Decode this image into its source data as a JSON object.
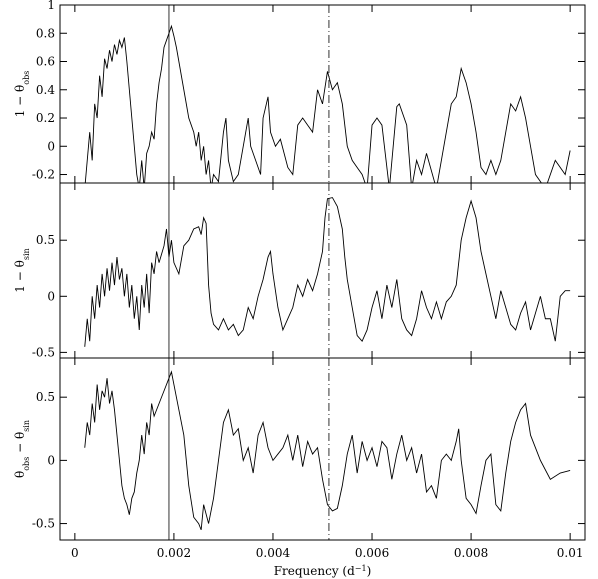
{
  "chart_data": [
    {
      "type": "line",
      "ylabel": [
        {
          "text": "1 − θ"
        },
        {
          "text": "obs",
          "sub": true
        }
      ],
      "xlim": [
        -0.0003,
        0.0103
      ],
      "ylim": [
        -0.26,
        1
      ],
      "xticks": [
        0,
        0.002,
        0.004,
        0.006,
        0.008,
        0.01
      ],
      "yticks": [
        -0.2,
        0,
        0.2,
        0.4,
        0.6,
        0.8,
        1
      ],
      "vlines": [
        0.0019,
        0.00513
      ],
      "vline_dash": [
        "solid",
        "dashdot"
      ],
      "color": "#000000",
      "x": [
        0.0002,
        0.0003,
        0.00035,
        0.0004,
        0.00045,
        0.0005,
        0.00055,
        0.0006,
        0.00065,
        0.0007,
        0.00075,
        0.0008,
        0.00085,
        0.0009,
        0.00095,
        0.001,
        0.00105,
        0.0011,
        0.00115,
        0.0012,
        0.00125,
        0.0013,
        0.00135,
        0.0014,
        0.00145,
        0.0015,
        0.00155,
        0.0016,
        0.00165,
        0.0017,
        0.00175,
        0.0018,
        0.00185,
        0.0019,
        0.00195,
        0.002,
        0.00205,
        0.0021,
        0.00215,
        0.0022,
        0.00225,
        0.0023,
        0.00235,
        0.0024,
        0.00245,
        0.0025,
        0.00255,
        0.0026,
        0.00265,
        0.0027,
        0.00275,
        0.0028,
        0.0029,
        0.003,
        0.00305,
        0.0031,
        0.0032,
        0.0033,
        0.0034,
        0.0035,
        0.00355,
        0.00365,
        0.00375,
        0.0038,
        0.0039,
        0.00395,
        0.00405,
        0.00415,
        0.0043,
        0.0044,
        0.0045,
        0.0046,
        0.0047,
        0.0048,
        0.0049,
        0.005,
        0.0051,
        0.0052,
        0.0053,
        0.0054,
        0.0055,
        0.0056,
        0.0057,
        0.0058,
        0.0059,
        0.006,
        0.0061,
        0.0062,
        0.00635,
        0.0065,
        0.00655,
        0.0067,
        0.0068,
        0.0069,
        0.007,
        0.0071,
        0.0073,
        0.0076,
        0.0077,
        0.0078,
        0.0079,
        0.008,
        0.0081,
        0.0082,
        0.0083,
        0.0084,
        0.0085,
        0.0086,
        0.0088,
        0.0089,
        0.009,
        0.0091,
        0.0092,
        0.0093,
        0.0095,
        0.0097,
        0.0099,
        0.01
      ],
      "values": [
        -0.3,
        0.1,
        -0.1,
        0.3,
        0.2,
        0.5,
        0.35,
        0.62,
        0.55,
        0.68,
        0.6,
        0.72,
        0.65,
        0.75,
        0.7,
        0.77,
        0.6,
        0.4,
        0.2,
        0,
        -0.2,
        -0.3,
        -0.1,
        -0.3,
        -0.05,
        0,
        0.1,
        0.05,
        0.3,
        0.45,
        0.55,
        0.7,
        0.75,
        0.8,
        0.85,
        0.78,
        0.7,
        0.6,
        0.5,
        0.4,
        0.3,
        0.2,
        0.15,
        0.1,
        0,
        0.1,
        -0.1,
        0,
        -0.2,
        -0.1,
        -0.3,
        -0.2,
        -0.25,
        0.1,
        0.2,
        -0.1,
        -0.25,
        -0.2,
        0,
        0.2,
        0,
        -0.1,
        -0.2,
        0.2,
        0.35,
        0.1,
        0,
        0.05,
        -0.15,
        -0.2,
        0.15,
        0.2,
        0.15,
        0.1,
        0.4,
        0.3,
        0.53,
        0.4,
        0.45,
        0.3,
        0,
        -0.1,
        -0.15,
        -0.2,
        -0.3,
        0.15,
        0.2,
        0.15,
        -0.3,
        0.28,
        0.3,
        0.15,
        -0.3,
        -0.1,
        -0.2,
        -0.05,
        -0.3,
        0.3,
        0.35,
        0.55,
        0.45,
        0.3,
        0.1,
        -0.15,
        -0.2,
        -0.1,
        -0.2,
        -0.1,
        0.3,
        0.25,
        0.35,
        0.2,
        0,
        -0.2,
        -0.3,
        -0.1,
        -0.2,
        -0.03
      ]
    },
    {
      "type": "line",
      "ylabel": [
        {
          "text": "1 − θ"
        },
        {
          "text": "sin",
          "sub": true
        }
      ],
      "xlim": [
        -0.0003,
        0.0103
      ],
      "ylim": [
        -0.55,
        1.01
      ],
      "xticks": [
        0,
        0.002,
        0.004,
        0.006,
        0.008,
        0.01
      ],
      "yticks": [
        -0.5,
        0,
        0.5
      ],
      "vlines": [
        0.0019,
        0.00513
      ],
      "vline_dash": [
        "solid",
        "dashdot"
      ],
      "color": "#000000",
      "x": [
        0.0002,
        0.00025,
        0.0003,
        0.00035,
        0.0004,
        0.00045,
        0.0005,
        0.00055,
        0.0006,
        0.00065,
        0.0007,
        0.00075,
        0.0008,
        0.00085,
        0.0009,
        0.00095,
        0.001,
        0.00105,
        0.0011,
        0.00115,
        0.0012,
        0.00125,
        0.0013,
        0.00135,
        0.0014,
        0.00145,
        0.0015,
        0.00155,
        0.0016,
        0.00165,
        0.0017,
        0.0018,
        0.00185,
        0.0019,
        0.00195,
        0.002,
        0.0021,
        0.0022,
        0.0023,
        0.0024,
        0.0025,
        0.00255,
        0.0026,
        0.00265,
        0.0027,
        0.00275,
        0.0028,
        0.0029,
        0.003,
        0.0031,
        0.0032,
        0.0033,
        0.0034,
        0.0035,
        0.0036,
        0.0037,
        0.0038,
        0.0039,
        0.00395,
        0.004,
        0.0041,
        0.0042,
        0.0043,
        0.0044,
        0.0045,
        0.0046,
        0.0047,
        0.0048,
        0.0049,
        0.005,
        0.00505,
        0.0051,
        0.0052,
        0.0053,
        0.0054,
        0.00545,
        0.0055,
        0.0056,
        0.0057,
        0.0058,
        0.0059,
        0.006,
        0.0061,
        0.0062,
        0.0063,
        0.0064,
        0.0065,
        0.0066,
        0.0067,
        0.0068,
        0.0069,
        0.007,
        0.0071,
        0.0072,
        0.0073,
        0.0074,
        0.0075,
        0.0076,
        0.0077,
        0.0078,
        0.0079,
        0.008,
        0.0081,
        0.0082,
        0.0083,
        0.0084,
        0.0085,
        0.0086,
        0.0087,
        0.0088,
        0.0089,
        0.009,
        0.0091,
        0.0092,
        0.0093,
        0.0094,
        0.0095,
        0.0096,
        0.0097,
        0.0098,
        0.0099,
        0.01
      ],
      "values": [
        -0.45,
        -0.2,
        -0.4,
        0,
        -0.2,
        0.1,
        -0.1,
        0.2,
        0,
        0.25,
        0.05,
        0.3,
        0.1,
        0.35,
        0.15,
        0.25,
        0,
        0.2,
        -0.1,
        0.1,
        -0.2,
        0,
        -0.3,
        0.1,
        -0.1,
        0.2,
        -0.15,
        0.3,
        0.2,
        0.4,
        0.3,
        0.45,
        0.6,
        0.35,
        0.5,
        0.3,
        0.2,
        0.45,
        0.5,
        0.6,
        0.62,
        0.55,
        0.7,
        0.65,
        0.1,
        -0.15,
        -0.25,
        -0.3,
        -0.2,
        -0.3,
        -0.25,
        -0.35,
        -0.3,
        -0.1,
        -0.2,
        0,
        0.15,
        0.35,
        0.4,
        0.2,
        -0.1,
        -0.3,
        -0.2,
        -0.1,
        0.1,
        0,
        0.15,
        0.05,
        0.2,
        0.4,
        0.7,
        0.87,
        0.88,
        0.8,
        0.6,
        0.35,
        0.15,
        -0.1,
        -0.35,
        -0.4,
        -0.3,
        -0.1,
        0.05,
        -0.2,
        0.1,
        -0.1,
        0.15,
        -0.2,
        -0.3,
        -0.35,
        -0.2,
        0.05,
        -0.1,
        -0.2,
        -0.05,
        -0.2,
        -0.05,
        0,
        0.1,
        0.5,
        0.7,
        0.85,
        0.7,
        0.4,
        0.2,
        0,
        -0.2,
        0.05,
        -0.1,
        -0.25,
        -0.3,
        -0.15,
        -0.05,
        -0.3,
        -0.15,
        0,
        -0.2,
        -0.2,
        -0.4,
        0,
        0.05,
        0.05
      ]
    },
    {
      "type": "line",
      "ylabel": [
        {
          "text": "θ"
        },
        {
          "text": "obs",
          "sub": true
        },
        {
          "text": " − θ"
        },
        {
          "text": "sin",
          "sub": true
        }
      ],
      "xlabel": [
        {
          "text": "Frequency (d"
        },
        {
          "text": "−1",
          "sup": true
        },
        {
          "text": ")"
        }
      ],
      "xlim": [
        -0.0003,
        0.0103
      ],
      "ylim": [
        -0.63,
        0.81
      ],
      "xticks": [
        0,
        0.002,
        0.004,
        0.006,
        0.008,
        0.01
      ],
      "yticks": [
        -0.5,
        0,
        0.5
      ],
      "vlines": [
        0.0019,
        0.00513
      ],
      "vline_dash": [
        "solid",
        "dashdot"
      ],
      "color": "#000000",
      "x": [
        0.0002,
        0.00025,
        0.0003,
        0.00035,
        0.0004,
        0.00045,
        0.0005,
        0.00055,
        0.0006,
        0.00065,
        0.0007,
        0.00075,
        0.0008,
        0.00085,
        0.0009,
        0.00095,
        0.001,
        0.00105,
        0.0011,
        0.00115,
        0.0012,
        0.00125,
        0.0013,
        0.00135,
        0.0014,
        0.00145,
        0.0015,
        0.00155,
        0.0016,
        0.0017,
        0.0018,
        0.0019,
        0.00195,
        0.002,
        0.0021,
        0.0022,
        0.0023,
        0.0024,
        0.0025,
        0.00255,
        0.0026,
        0.0027,
        0.0028,
        0.0029,
        0.003,
        0.0031,
        0.0032,
        0.0033,
        0.0034,
        0.0035,
        0.0036,
        0.0037,
        0.0038,
        0.0039,
        0.004,
        0.0041,
        0.0042,
        0.0043,
        0.0044,
        0.0045,
        0.0046,
        0.0047,
        0.0048,
        0.0049,
        0.005,
        0.0051,
        0.0052,
        0.0053,
        0.0054,
        0.0055,
        0.0056,
        0.0057,
        0.0058,
        0.0059,
        0.006,
        0.0061,
        0.0062,
        0.0063,
        0.0064,
        0.0065,
        0.0066,
        0.0067,
        0.0068,
        0.0069,
        0.007,
        0.0071,
        0.0072,
        0.0073,
        0.0074,
        0.0075,
        0.0076,
        0.0077,
        0.00775,
        0.0078,
        0.0079,
        0.008,
        0.0081,
        0.0082,
        0.0083,
        0.0084,
        0.0085,
        0.0086,
        0.0087,
        0.0088,
        0.0089,
        0.009,
        0.0091,
        0.0092,
        0.0094,
        0.0096,
        0.0098,
        0.01
      ],
      "values": [
        0.1,
        0.3,
        0.2,
        0.45,
        0.3,
        0.6,
        0.4,
        0.55,
        0.5,
        0.65,
        0.45,
        0.55,
        0.4,
        0.2,
        0,
        -0.2,
        -0.3,
        -0.35,
        -0.43,
        -0.3,
        -0.25,
        -0.1,
        0,
        0.2,
        0.05,
        0.3,
        0.2,
        0.45,
        0.35,
        0.45,
        0.55,
        0.65,
        0.7,
        0.6,
        0.4,
        0.2,
        -0.2,
        -0.45,
        -0.5,
        -0.55,
        -0.35,
        -0.5,
        -0.3,
        0,
        0.3,
        0.4,
        0.2,
        0.25,
        0,
        0.1,
        -0.1,
        0.2,
        0.3,
        0.1,
        0,
        0.05,
        0.1,
        0.2,
        0,
        0.2,
        -0.05,
        0.15,
        0.05,
        0.1,
        -0.15,
        -0.35,
        -0.4,
        -0.38,
        -0.2,
        0.05,
        0.2,
        -0.1,
        0.15,
        0,
        0.1,
        -0.05,
        0.15,
        0.1,
        -0.15,
        0.05,
        0.2,
        0,
        0.1,
        -0.1,
        0.05,
        -0.25,
        -0.2,
        -0.3,
        0,
        0.05,
        0,
        0.15,
        0.25,
        0,
        -0.3,
        -0.35,
        -0.42,
        -0.2,
        0,
        0.05,
        -0.35,
        -0.4,
        -0.1,
        0.15,
        0.3,
        0.4,
        0.45,
        0.2,
        0,
        -0.15,
        -0.1,
        -0.08
      ]
    }
  ]
}
